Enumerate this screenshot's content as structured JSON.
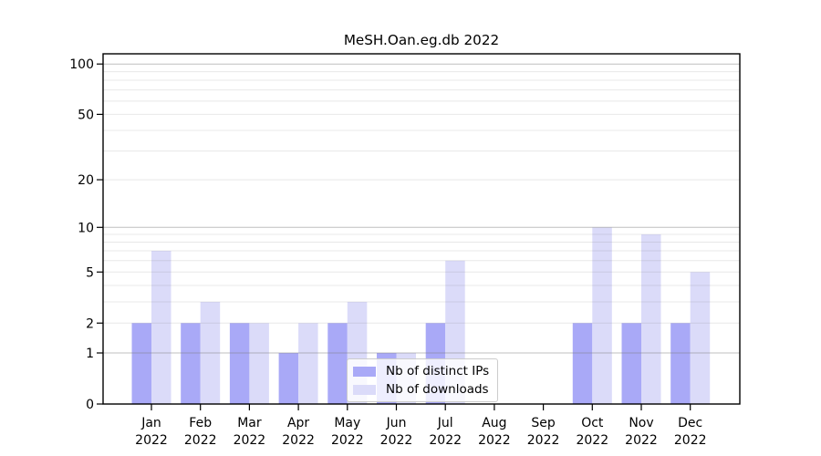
{
  "title": "MeSH.Oan.eg.db 2022",
  "colors": {
    "distinct_ips": "#a9a9f7",
    "downloads": "#dbdbf9",
    "grid": "#808080",
    "axis": "#000000",
    "text": "#000000",
    "legend_border": "#cccccc"
  },
  "legend": {
    "items": [
      {
        "label": "Nb of distinct IPs",
        "color_key": "distinct_ips"
      },
      {
        "label": "Nb of downloads",
        "color_key": "downloads"
      }
    ]
  },
  "chart_data": {
    "type": "bar",
    "title": "MeSH.Oan.eg.db 2022",
    "categories": [
      "Jan",
      "Feb",
      "Mar",
      "Apr",
      "May",
      "Jun",
      "Jul",
      "Aug",
      "Sep",
      "Oct",
      "Nov",
      "Dec"
    ],
    "x_year_label": "2022",
    "series": [
      {
        "name": "Nb of distinct IPs",
        "values": [
          2,
          2,
          2,
          1,
          2,
          1,
          2,
          0,
          0,
          2,
          2,
          2
        ]
      },
      {
        "name": "Nb of downloads",
        "values": [
          7,
          3,
          2,
          2,
          3,
          1,
          6,
          0,
          0,
          10,
          9,
          5
        ]
      }
    ],
    "xlabel": "",
    "ylabel": "",
    "yscale": "log1p",
    "yticks": [
      0,
      1,
      2,
      5,
      10,
      20,
      50,
      100
    ],
    "ylim": [
      0,
      117
    ],
    "grid": "on",
    "legend_position": "lower center inside"
  }
}
